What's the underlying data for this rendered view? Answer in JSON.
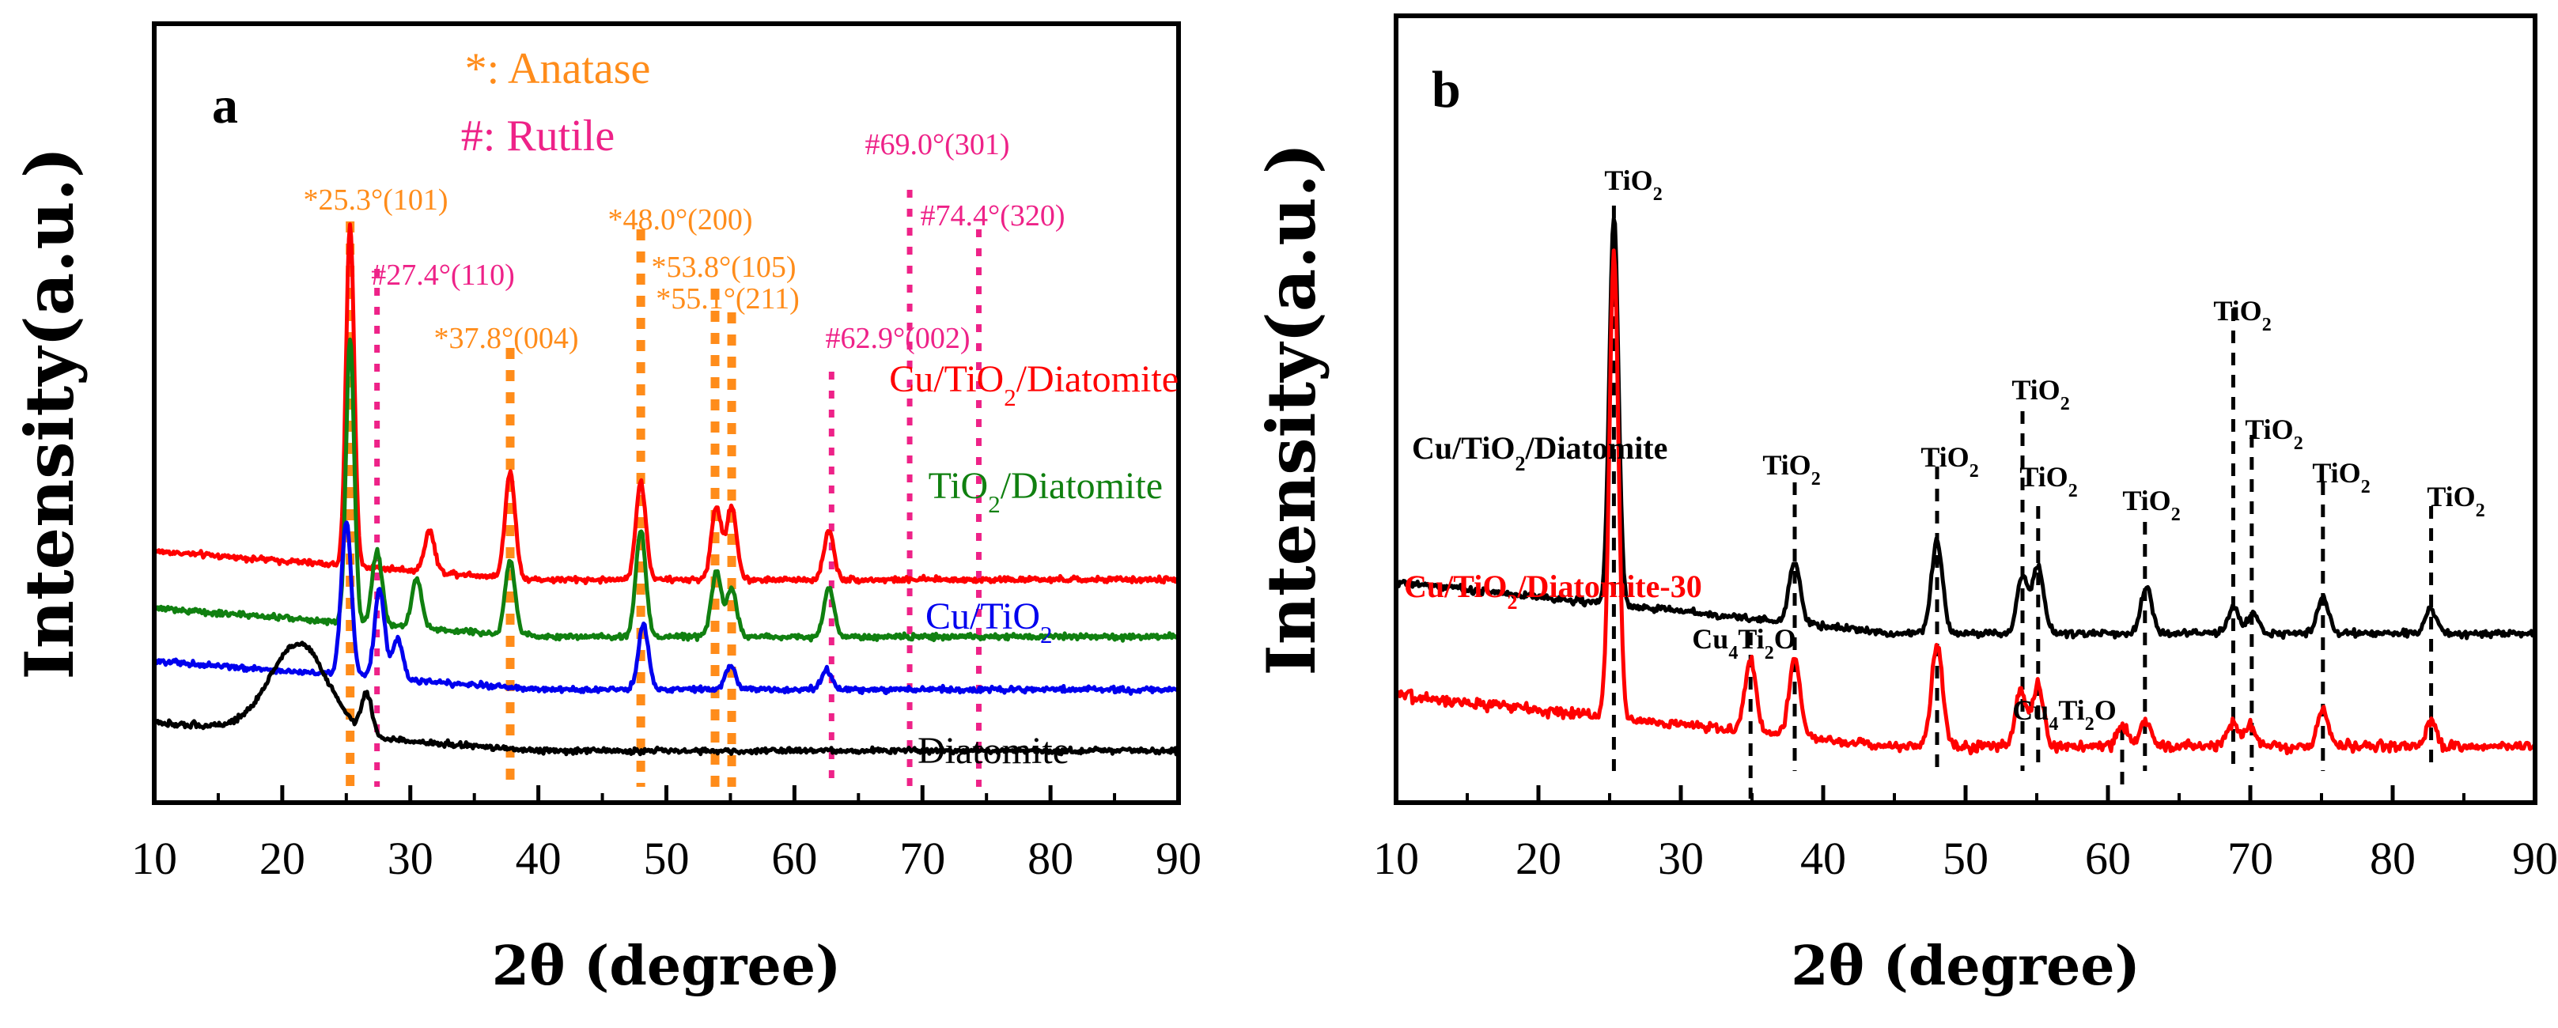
{
  "chart_data": [
    {
      "panel": "a",
      "type": "line",
      "xlabel": "2θ (degree)",
      "ylabel": "Intensity(a.u.)",
      "xlim": [
        10,
        90
      ],
      "xticks": [
        10,
        20,
        30,
        40,
        50,
        60,
        70,
        80,
        90
      ],
      "legend_notes": [
        {
          "text": "*: Anatase",
          "color": "#ff8c1a"
        },
        {
          "text": "#: Rutile",
          "color": "#ee2288"
        }
      ],
      "series": [
        {
          "name": "Cu/TiO",
          "sub": "2",
          "name_tail": "/Diatomite",
          "color": "#ff0000",
          "baseline": 2.3,
          "peaks": [
            [
              25.3,
              4.2
            ],
            [
              31.5,
              0.5
            ],
            [
              37.8,
              1.3
            ],
            [
              48.0,
              1.2
            ],
            [
              53.9,
              0.9
            ],
            [
              55.1,
              0.9
            ],
            [
              62.7,
              0.6
            ]
          ]
        },
        {
          "name": "TiO",
          "sub": "2",
          "name_tail": "/Diatomite",
          "color": "#108010",
          "baseline": 1.6,
          "peaks": [
            [
              25.3,
              3.5
            ],
            [
              27.4,
              0.9
            ],
            [
              30.5,
              0.6
            ],
            [
              37.8,
              0.9
            ],
            [
              48.0,
              1.3
            ],
            [
              53.9,
              0.8
            ],
            [
              55.1,
              0.6
            ],
            [
              62.7,
              0.6
            ]
          ]
        },
        {
          "name": "Cu/TiO",
          "sub": "2",
          "name_tail": "",
          "color": "#0000ee",
          "baseline": 0.95,
          "peaks": [
            [
              25.0,
              1.9
            ],
            [
              27.6,
              1.1
            ],
            [
              29.0,
              0.5
            ],
            [
              48.2,
              0.8
            ],
            [
              55.0,
              0.3
            ],
            [
              62.5,
              0.25
            ]
          ]
        },
        {
          "name": "Diatomite",
          "sub": "",
          "name_tail": "",
          "color": "#000000",
          "baseline": 0.2,
          "peaks": [
            [
              21.3,
              1.1
            ],
            [
              26.6,
              0.5
            ]
          ]
        }
      ],
      "reference_lines": [
        {
          "x": 25.3,
          "phase": "anatase",
          "label": "*25.3°(101)"
        },
        {
          "x": 27.4,
          "phase": "rutile",
          "label": "#27.4°(110)"
        },
        {
          "x": 37.8,
          "phase": "anatase",
          "label": "*37.8°(004)"
        },
        {
          "x": 48.0,
          "phase": "anatase",
          "label": "*48.0°(200)"
        },
        {
          "x": 53.8,
          "phase": "anatase",
          "label": "*53.8°(105)"
        },
        {
          "x": 55.1,
          "phase": "anatase",
          "label": "*55.1°(211)"
        },
        {
          "x": 62.9,
          "phase": "rutile",
          "label": "#62.9°(002)"
        },
        {
          "x": 69.0,
          "phase": "rutile",
          "label": "#69.0°(301)"
        },
        {
          "x": 74.4,
          "phase": "rutile",
          "label": "#74.4°(320)"
        }
      ]
    },
    {
      "panel": "b",
      "type": "line",
      "xlabel": "2θ (degree)",
      "ylabel": "Intensity(a.u.)",
      "xlim": [
        10,
        90
      ],
      "xticks": [
        10,
        20,
        30,
        40,
        50,
        60,
        70,
        80,
        90
      ],
      "series": [
        {
          "name": "Cu/TiO",
          "sub": "2",
          "name_tail": "/Diatomite",
          "color": "#000000",
          "baseline": 1.3,
          "peaks": [
            [
              25.3,
              3.8
            ],
            [
              38.0,
              0.6
            ],
            [
              48.0,
              0.9
            ],
            [
              54.0,
              0.55
            ],
            [
              55.1,
              0.65
            ],
            [
              62.7,
              0.45
            ],
            [
              68.8,
              0.25
            ],
            [
              70.2,
              0.2
            ],
            [
              75.1,
              0.35
            ],
            [
              82.7,
              0.25
            ]
          ]
        },
        {
          "name": "Cu/TiO",
          "sub": "2",
          "name_tail": "/Diatomite-30",
          "color": "#ff0000",
          "baseline": 0.2,
          "peaks": [
            [
              25.3,
              4.5
            ],
            [
              34.9,
              0.7
            ],
            [
              38.0,
              0.75
            ],
            [
              48.0,
              1.0
            ],
            [
              53.9,
              0.55
            ],
            [
              55.1,
              0.6
            ],
            [
              61.0,
              0.2
            ],
            [
              62.6,
              0.25
            ],
            [
              68.8,
              0.25
            ],
            [
              70.0,
              0.2
            ],
            [
              75.1,
              0.35
            ],
            [
              82.7,
              0.25
            ]
          ]
        }
      ],
      "reference_lines": [
        {
          "x": 25.3,
          "label": "TiO",
          "sub": "2"
        },
        {
          "x": 34.9,
          "label": "Cu",
          "sub": "4",
          "label_mid": "Ti",
          "sub2": "2",
          "label_tail": "O"
        },
        {
          "x": 38.0,
          "label": "TiO",
          "sub": "2"
        },
        {
          "x": 48.0,
          "label": "TiO",
          "sub": "2"
        },
        {
          "x": 54.0,
          "label": "TiO",
          "sub": "2"
        },
        {
          "x": 55.1,
          "label": "TiO",
          "sub": "2"
        },
        {
          "x": 61.0,
          "label": "Cu",
          "sub": "4",
          "label_mid": "Ti",
          "sub2": "2",
          "label_tail": "O"
        },
        {
          "x": 62.6,
          "label": "TiO",
          "sub": "2"
        },
        {
          "x": 68.8,
          "label": "TiO",
          "sub": "2"
        },
        {
          "x": 70.1,
          "label": "TiO",
          "sub": "2"
        },
        {
          "x": 75.1,
          "label": "TiO",
          "sub": "2"
        },
        {
          "x": 82.7,
          "label": "TiO",
          "sub": "2"
        }
      ]
    }
  ]
}
